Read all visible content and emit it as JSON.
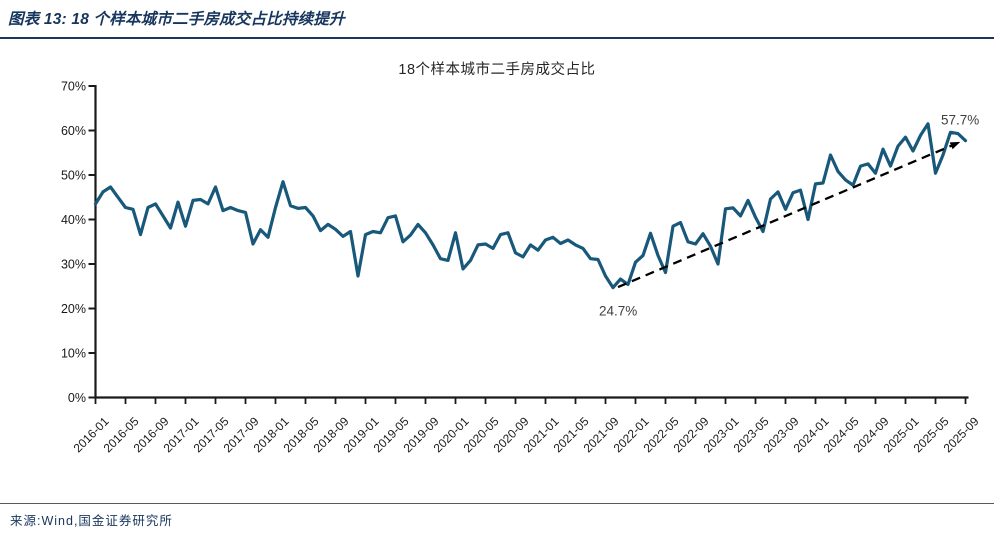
{
  "figure": {
    "header": "图表 13: 18 个样本城市二手房成交占比持续提升",
    "source": "来源:Wind,国金证券研究所"
  },
  "colors": {
    "series_line": "#18587A",
    "header_text": "#17365D",
    "header_rule": "#17375E",
    "axis": "#1A1A1A",
    "tick_label": "#1A1A1A",
    "annotation_text": "#404040",
    "trend_arrow": "#000000"
  },
  "chart_data": {
    "type": "line",
    "title": "18个样本城市二手房成交占比",
    "x_start": "2016-01",
    "x_end": "2025-09",
    "x_freq": "monthly",
    "x_tick_labels": [
      "2016-01",
      "2016-05",
      "2016-09",
      "2017-01",
      "2017-05",
      "2017-09",
      "2018-01",
      "2018-05",
      "2018-09",
      "2019-01",
      "2019-05",
      "2019-09",
      "2020-01",
      "2020-05",
      "2020-09",
      "2021-01",
      "2021-05",
      "2021-09",
      "2022-01",
      "2022-05",
      "2022-09",
      "2023-01",
      "2023-05",
      "2023-09",
      "2024-01",
      "2024-05",
      "2024-09",
      "2025-01",
      "2025-05",
      "2025-09"
    ],
    "y_tick_labels": [
      "0%",
      "10%",
      "20%",
      "30%",
      "40%",
      "50%",
      "60%",
      "70%"
    ],
    "ylim": [
      0,
      70
    ],
    "grid": false,
    "legend": "none",
    "series": [
      {
        "name": "18个样本城市二手房成交占比",
        "unit": "%",
        "values": [
          43.5,
          46.2,
          47.3,
          45.0,
          42.7,
          42.3,
          36.6,
          42.7,
          43.5,
          40.8,
          38.1,
          43.9,
          38.5,
          44.3,
          44.5,
          43.5,
          47.3,
          42.0,
          42.7,
          42.0,
          41.6,
          34.5,
          37.7,
          36.0,
          42.7,
          48.5,
          43.1,
          42.5,
          42.7,
          40.8,
          37.5,
          38.9,
          37.8,
          36.2,
          37.3,
          27.3,
          36.6,
          37.3,
          37.0,
          40.4,
          40.8,
          35.0,
          36.5,
          38.9,
          37.0,
          34.3,
          31.2,
          30.8,
          37.0,
          28.9,
          30.8,
          34.3,
          34.5,
          33.5,
          36.6,
          37.0,
          32.5,
          31.6,
          34.3,
          33.1,
          35.4,
          36.0,
          34.6,
          35.4,
          34.3,
          33.5,
          31.2,
          31.0,
          27.3,
          24.7,
          26.6,
          25.4,
          30.4,
          31.9,
          36.9,
          31.9,
          28.1,
          38.5,
          39.3,
          35.0,
          34.5,
          36.8,
          34.0,
          30.0,
          42.4,
          42.6,
          40.8,
          44.3,
          40.5,
          37.3,
          44.6,
          46.2,
          42.3,
          46.0,
          46.6,
          40.0,
          48.0,
          48.2,
          54.5,
          50.8,
          48.9,
          47.7,
          52.0,
          52.5,
          50.4,
          55.8,
          52.0,
          56.5,
          58.5,
          55.4,
          58.9,
          61.5,
          50.4,
          54.5,
          59.6,
          59.3,
          57.7
        ]
      }
    ],
    "annotations": [
      {
        "text": "24.7%",
        "month": "2021-10",
        "value": 24.7,
        "position": "below"
      },
      {
        "text": "57.7%",
        "month": "2025-09",
        "value": 57.7,
        "position": "above"
      }
    ],
    "trend_arrow": {
      "style": "dashed",
      "from_month": "2021-10",
      "from_value": 24.7,
      "to_month": "2025-09",
      "to_value": 57.7
    }
  }
}
